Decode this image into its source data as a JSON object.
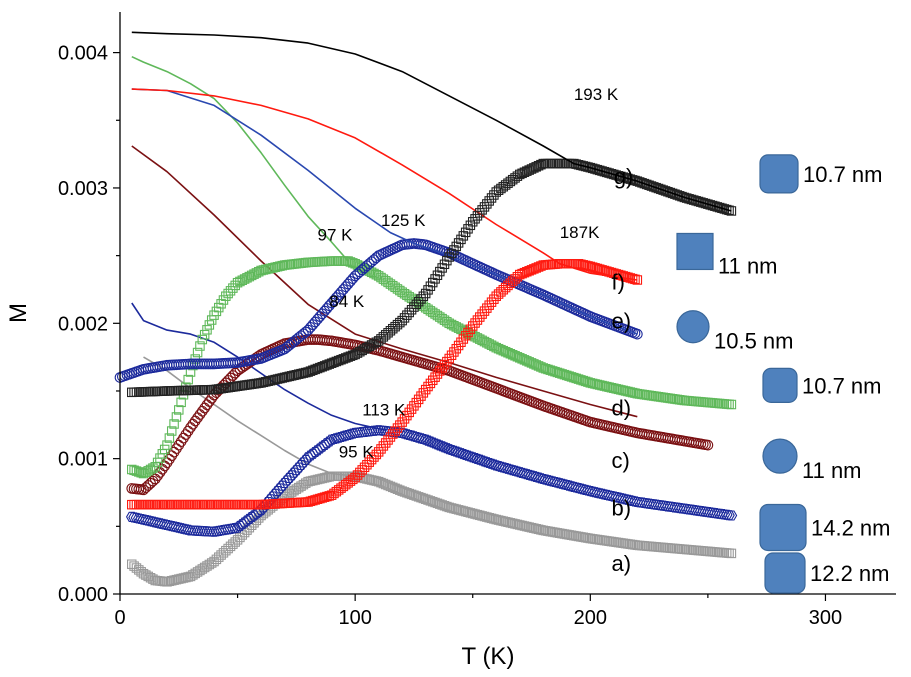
{
  "chart_data": {
    "type": "line",
    "title": "",
    "xlabel": "T (K)",
    "ylabel": "M",
    "xlim": [
      0,
      330
    ],
    "ylim": [
      0,
      0.0043
    ],
    "x_ticks": [
      0,
      100,
      200,
      300
    ],
    "x_tick_labels": [
      "0",
      "100",
      "200",
      "300"
    ],
    "y_ticks": [
      0,
      0.001,
      0.002,
      0.003,
      0.004
    ],
    "y_tick_labels": [
      "0.000",
      "0.001",
      "0.002",
      "0.003",
      "0.004"
    ],
    "grid": false,
    "series": [
      {
        "id": "a-zfc",
        "color": "#999999",
        "marker": "square",
        "x": [
          5,
          10,
          15,
          20,
          30,
          40,
          50,
          60,
          70,
          80,
          90,
          100,
          110,
          120,
          140,
          160,
          180,
          200,
          220,
          240,
          260
        ],
        "y": [
          0.00022,
          0.00015,
          0.0001,
          9e-05,
          0.00013,
          0.00024,
          0.0004,
          0.00058,
          0.00072,
          0.00083,
          0.00087,
          0.00087,
          0.00083,
          0.00076,
          0.00064,
          0.00055,
          0.00047,
          0.00041,
          0.00036,
          0.00033,
          0.0003
        ]
      },
      {
        "id": "a-fc",
        "color": "#999999",
        "marker": "none",
        "x": [
          10,
          20,
          30,
          40,
          50,
          60,
          70,
          80,
          90,
          100
        ],
        "y": [
          0.00175,
          0.00165,
          0.00152,
          0.0014,
          0.00128,
          0.00117,
          0.00106,
          0.00096,
          0.00089,
          0.00087
        ]
      },
      {
        "id": "b-zfc",
        "color": "#1c2a9c",
        "marker": "hexagon",
        "x": [
          5,
          10,
          20,
          30,
          40,
          50,
          60,
          70,
          80,
          90,
          100,
          110,
          120,
          130,
          140,
          160,
          180,
          200,
          220,
          240,
          260
        ],
        "y": [
          0.00057,
          0.00055,
          0.00051,
          0.00047,
          0.00046,
          0.00049,
          0.00062,
          0.00082,
          0.00101,
          0.00114,
          0.00119,
          0.00121,
          0.00119,
          0.00114,
          0.00107,
          0.00095,
          0.00085,
          0.00076,
          0.00068,
          0.00063,
          0.00058
        ]
      },
      {
        "id": "b-fc",
        "color": "#1c2a9c",
        "marker": "none",
        "x": [
          5,
          10,
          20,
          30,
          40,
          50,
          60,
          70,
          80,
          90,
          100,
          113
        ],
        "y": [
          0.00215,
          0.00202,
          0.00195,
          0.00192,
          0.00186,
          0.00175,
          0.00163,
          0.00151,
          0.00141,
          0.00132,
          0.00126,
          0.00121
        ]
      },
      {
        "id": "c-zfc",
        "color": "#7b1113",
        "marker": "circle",
        "x": [
          5,
          10,
          15,
          20,
          30,
          40,
          50,
          60,
          70,
          80,
          84,
          90,
          100,
          110,
          120,
          140,
          160,
          180,
          200,
          220,
          240,
          250
        ],
        "y": [
          0.00078,
          0.00077,
          0.00085,
          0.00097,
          0.00123,
          0.00147,
          0.00165,
          0.00177,
          0.00185,
          0.00188,
          0.00188,
          0.00187,
          0.00184,
          0.0018,
          0.00175,
          0.00165,
          0.00152,
          0.00139,
          0.00127,
          0.00119,
          0.00113,
          0.0011
        ]
      },
      {
        "id": "c-fc",
        "color": "#7b1113",
        "marker": "none",
        "x": [
          5,
          20,
          40,
          60,
          80,
          100,
          120,
          140,
          160,
          180,
          200,
          220
        ],
        "y": [
          0.00331,
          0.00312,
          0.0028,
          0.00246,
          0.00214,
          0.00192,
          0.00181,
          0.00171,
          0.0016,
          0.0015,
          0.0014,
          0.00131
        ]
      },
      {
        "id": "d-zfc",
        "color": "#5fb85a",
        "marker": "square",
        "x": [
          5,
          10,
          15,
          20,
          25,
          30,
          35,
          40,
          45,
          50,
          60,
          70,
          80,
          90,
          97,
          100,
          110,
          120,
          140,
          160,
          180,
          200,
          220,
          240,
          260
        ],
        "y": [
          0.00092,
          0.00089,
          0.00094,
          0.0011,
          0.00136,
          0.00164,
          0.00188,
          0.00206,
          0.0022,
          0.0023,
          0.00239,
          0.00243,
          0.00245,
          0.00246,
          0.00246,
          0.00244,
          0.00235,
          0.00223,
          0.002,
          0.00182,
          0.00167,
          0.00156,
          0.00148,
          0.00143,
          0.0014
        ]
      },
      {
        "id": "d-fc",
        "color": "#5fb85a",
        "marker": "none",
        "x": [
          5,
          10,
          20,
          30,
          40,
          50,
          60,
          70,
          80,
          90,
          97
        ],
        "y": [
          0.00397,
          0.00393,
          0.00386,
          0.00377,
          0.00366,
          0.00348,
          0.00326,
          0.00302,
          0.00279,
          0.0026,
          0.00246
        ]
      },
      {
        "id": "e-zfc",
        "color": "#1c2a9c",
        "marker": "circle",
        "x": [
          0,
          10,
          20,
          30,
          40,
          50,
          60,
          70,
          80,
          90,
          100,
          110,
          120,
          125,
          130,
          140,
          160,
          180,
          200,
          220
        ],
        "y": [
          0.0016,
          0.00166,
          0.00169,
          0.0017,
          0.0017,
          0.00171,
          0.00174,
          0.00181,
          0.00195,
          0.00215,
          0.00235,
          0.0025,
          0.00258,
          0.00259,
          0.00258,
          0.00252,
          0.00236,
          0.00221,
          0.00205,
          0.00192
        ]
      },
      {
        "id": "e-fc",
        "color": "#2a48b0",
        "marker": "none",
        "x": [
          5,
          20,
          40,
          60,
          80,
          100,
          115,
          125,
          140,
          160,
          180,
          200,
          220
        ],
        "y": [
          0.00373,
          0.00372,
          0.00361,
          0.00339,
          0.00313,
          0.00285,
          0.00267,
          0.00259,
          0.0025,
          0.00236,
          0.00221,
          0.00205,
          0.00192
        ]
      },
      {
        "id": "f-zfc",
        "color": "#ff1a10",
        "marker": "square",
        "x": [
          5,
          20,
          40,
          60,
          80,
          90,
          100,
          110,
          120,
          130,
          140,
          150,
          160,
          170,
          180,
          187,
          195,
          200,
          210,
          220
        ],
        "y": [
          0.00066,
          0.00066,
          0.00066,
          0.00066,
          0.00068,
          0.00073,
          0.00086,
          0.00105,
          0.00127,
          0.00151,
          0.00174,
          0.00198,
          0.0022,
          0.00236,
          0.00243,
          0.00244,
          0.00244,
          0.00242,
          0.00237,
          0.00232
        ]
      },
      {
        "id": "f-fc",
        "color": "#ff1a10",
        "marker": "none",
        "x": [
          5,
          20,
          40,
          60,
          80,
          100,
          120,
          140,
          160,
          180,
          187,
          200,
          220
        ],
        "y": [
          0.00373,
          0.00372,
          0.00368,
          0.00361,
          0.00351,
          0.00337,
          0.00317,
          0.00296,
          0.00273,
          0.00252,
          0.00244,
          0.00237,
          0.00232
        ]
      },
      {
        "id": "g-zfc",
        "color": "#222222",
        "marker": "square",
        "x": [
          5,
          20,
          40,
          60,
          80,
          100,
          110,
          120,
          130,
          140,
          150,
          160,
          170,
          180,
          190,
          193,
          200,
          220,
          240,
          260
        ],
        "y": [
          0.00149,
          0.0015,
          0.00151,
          0.00156,
          0.00164,
          0.00177,
          0.00187,
          0.00202,
          0.00222,
          0.00249,
          0.00275,
          0.00297,
          0.0031,
          0.00318,
          0.00318,
          0.00318,
          0.00315,
          0.00305,
          0.00293,
          0.00283
        ]
      },
      {
        "id": "g-fc",
        "color": "#000000",
        "marker": "none",
        "x": [
          5,
          20,
          40,
          60,
          80,
          100,
          120,
          140,
          160,
          180,
          193,
          200,
          220,
          240,
          260
        ],
        "y": [
          0.00415,
          0.00414,
          0.00413,
          0.00411,
          0.00407,
          0.00399,
          0.00386,
          0.00368,
          0.0035,
          0.00331,
          0.00318,
          0.00315,
          0.00305,
          0.00293,
          0.00283
        ]
      }
    ],
    "annotations": [
      {
        "text": "193 K",
        "x": 193,
        "y": 0.00365
      },
      {
        "text": "187K",
        "x": 187,
        "y": 0.00263
      },
      {
        "text": "125 K",
        "x": 111,
        "y": 0.00272
      },
      {
        "text": "97 K",
        "x": 84,
        "y": 0.00261
      },
      {
        "text": "84 K",
        "x": 89,
        "y": 0.00212
      },
      {
        "text": "113 K",
        "x": 103,
        "y": 0.00132
      },
      {
        "text": "95 K",
        "x": 93,
        "y": 0.00101
      }
    ],
    "curve_labels": [
      {
        "text": "g)",
        "x": 210,
        "y": 0.00303
      },
      {
        "text": "f)",
        "x": 209,
        "y": 0.00225
      },
      {
        "text": "e)",
        "x": 209,
        "y": 0.00196
      },
      {
        "text": "d)",
        "x": 209,
        "y": 0.00132
      },
      {
        "text": "c)",
        "x": 209,
        "y": 0.00093
      },
      {
        "text": "b)",
        "x": 209,
        "y": 0.00058
      },
      {
        "text": "a)",
        "x": 209,
        "y": 0.00017
      }
    ],
    "legend": [
      {
        "shape": "rounded-square",
        "label": "10.7 nm"
      },
      {
        "shape": "square",
        "label": "11 nm"
      },
      {
        "shape": "circle",
        "label": "10.5 nm"
      },
      {
        "shape": "rounded-square",
        "label": "10.7 nm"
      },
      {
        "shape": "circle",
        "label": "11 nm"
      },
      {
        "shape": "rounded-square",
        "label": "14.2 nm"
      },
      {
        "shape": "rounded-square",
        "label": "12.2 nm"
      }
    ],
    "legend_color": "#4f81bd"
  }
}
